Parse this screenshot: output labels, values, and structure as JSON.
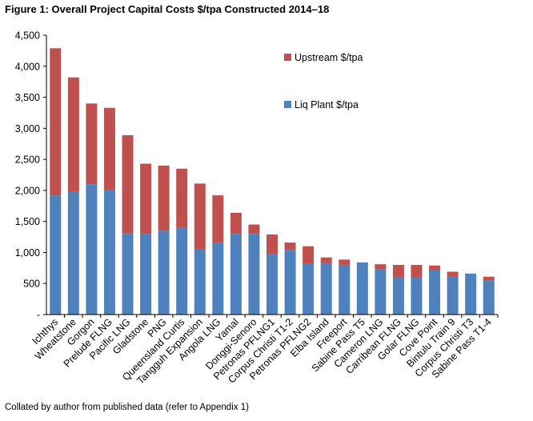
{
  "figure": {
    "title": "Figure 1: Overall Project Capital Costs $/tpa Constructed 2014–18",
    "source_note": "Collated by author from published data (refer to Appendix 1)"
  },
  "chart_data": {
    "type": "bar",
    "stacked": true,
    "categories": [
      "Ichthys",
      "Wheatstone",
      "Gorgon",
      "Prelude FLNG",
      "Pacific LNG",
      "Gladstone",
      "PNG",
      "Queensland Curtis",
      "Tangguh Expansion",
      "Angola LNG",
      "Yamal",
      "Donggi-Senoro",
      "Petronas PFLNG1",
      "Corpus Christi T1-2",
      "Petronas PFLNG2",
      "Elba Island",
      "Freeport",
      "Sabine Pass T5",
      "Cameron LNG",
      "Carribean FLNG",
      "Golar FLNG",
      "Cove Point",
      "Bintulu Train 9",
      "Corpus Christi T3",
      "Sabine Pass T1-4"
    ],
    "series": [
      {
        "name": "Liq Plant $/tpa",
        "color": "#4f81bd",
        "values": [
          1920,
          1980,
          2100,
          2000,
          1300,
          1300,
          1350,
          1400,
          1050,
          1150,
          1300,
          1300,
          970,
          1040,
          820,
          830,
          800,
          840,
          730,
          600,
          600,
          710,
          620,
          660,
          550
        ]
      },
      {
        "name": "Upstream $/tpa",
        "color": "#c0504d",
        "values": [
          2370,
          1840,
          1300,
          1330,
          1590,
          1130,
          1050,
          950,
          1060,
          770,
          340,
          150,
          320,
          120,
          280,
          90,
          85,
          0,
          80,
          200,
          200,
          80,
          70,
          0,
          60
        ]
      }
    ],
    "ylim": [
      0,
      4500
    ],
    "yticks": [
      0,
      500,
      1000,
      1500,
      2000,
      2500,
      3000,
      3500,
      4000,
      4500
    ],
    "ytick_labels": [
      "-",
      "500",
      "1,000",
      "1,500",
      "2,000",
      "2,500",
      "3,000",
      "3,500",
      "4,000",
      "4,500"
    ],
    "legend_position": "top-right",
    "grid": false
  }
}
